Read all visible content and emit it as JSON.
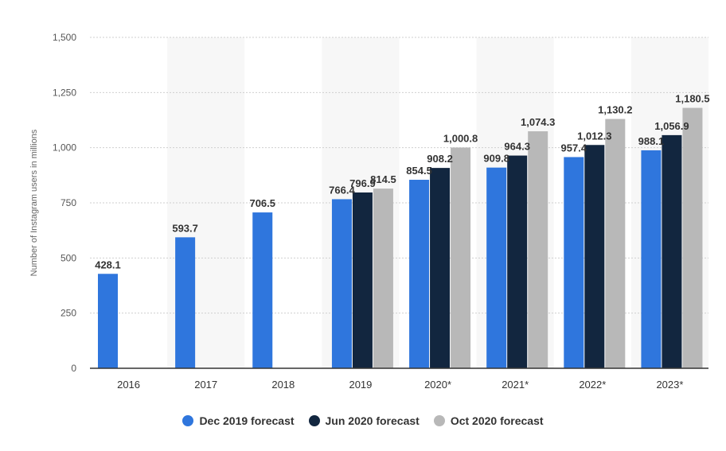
{
  "chart_data": {
    "type": "bar",
    "ylabel": "Number of Instagram users in millions",
    "xlabel": "",
    "ylim": [
      0,
      1500
    ],
    "yticks": [
      0,
      250,
      500,
      750,
      1000,
      1250,
      1500
    ],
    "ytick_labels": [
      "0",
      "250",
      "500",
      "750",
      "1,000",
      "1,250",
      "1,500"
    ],
    "categories": [
      "2016",
      "2017",
      "2018",
      "2019",
      "2020*",
      "2021*",
      "2022*",
      "2023*"
    ],
    "series": [
      {
        "name": "Dec 2019 forecast",
        "color": "#2f76dd",
        "values": [
          428.1,
          593.7,
          706.5,
          766.4,
          854.5,
          909.8,
          957.4,
          988.1
        ],
        "labels": [
          "428.1",
          "593.7",
          "706.5",
          "766.4",
          "854.5",
          "909.8",
          "957.4",
          "988.1"
        ]
      },
      {
        "name": "Jun 2020 forecast",
        "color": "#12263f",
        "values": [
          null,
          null,
          null,
          796.9,
          908.2,
          964.3,
          1012.3,
          1056.9
        ],
        "labels": [
          null,
          null,
          null,
          "796.9",
          "908.2",
          "964.3",
          "1,012.3",
          "1,056.9"
        ]
      },
      {
        "name": "Oct 2020 forecast",
        "color": "#b8b8b8",
        "values": [
          null,
          null,
          null,
          814.5,
          1000.8,
          1074.3,
          1130.2,
          1180.5
        ],
        "labels": [
          null,
          null,
          null,
          "814.5",
          "1,000.8",
          "1,074.3",
          "1,130.2",
          "1,180.5"
        ]
      }
    ],
    "grid": true,
    "legend_position": "bottom"
  }
}
